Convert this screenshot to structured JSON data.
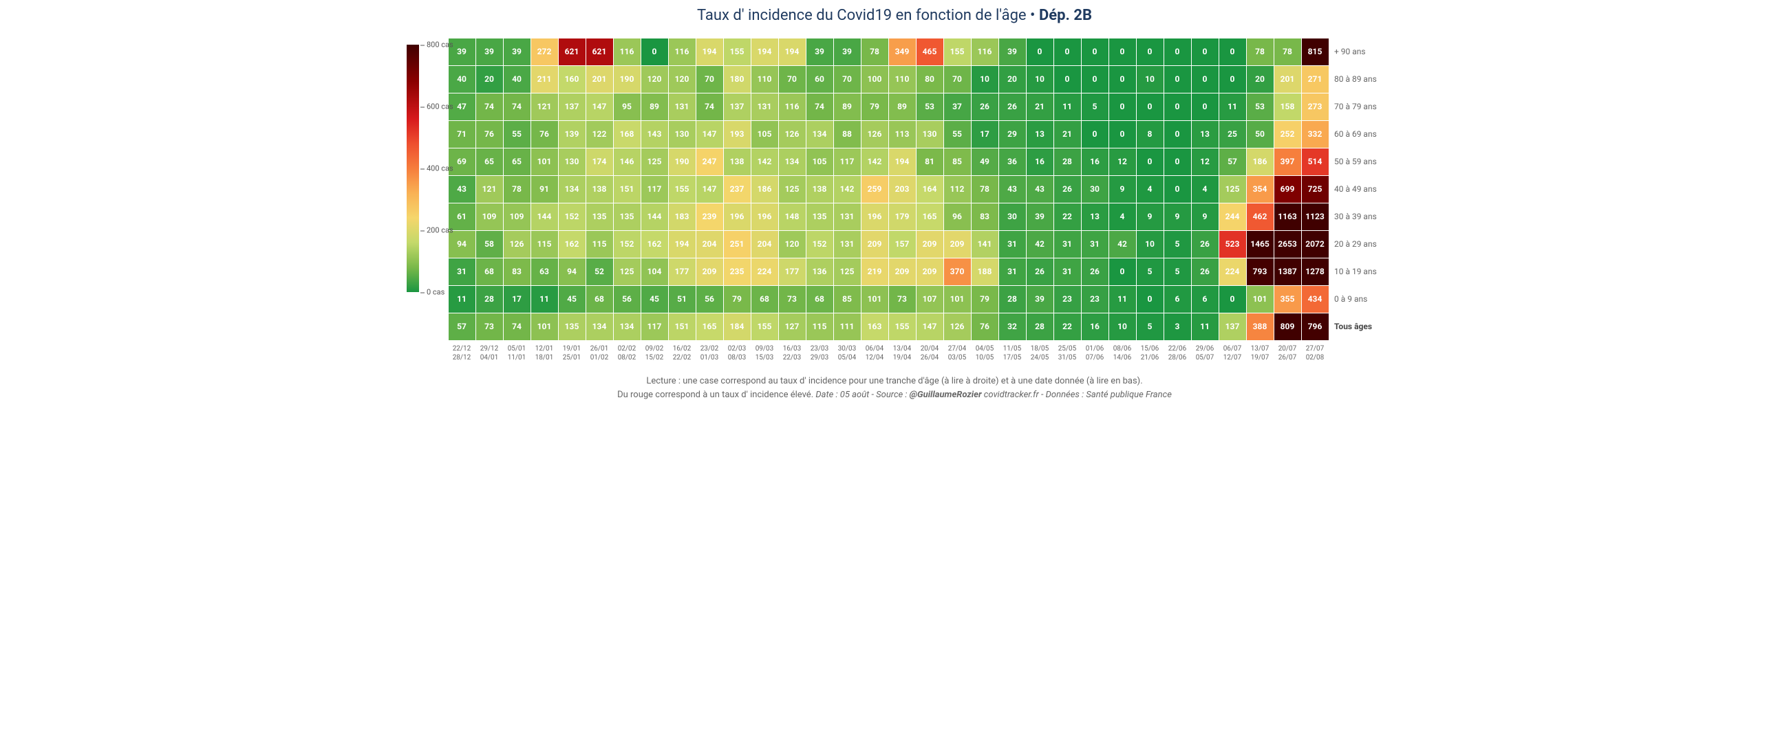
{
  "title_pre": "Taux d' incidence du Covid19 en fonction de l'âge • ",
  "title_dep": "Dép. 2B",
  "colorbar": {
    "ticks": [
      {
        "v": 800,
        "label": "800 cas"
      },
      {
        "v": 600,
        "label": "600 cas"
      },
      {
        "v": 400,
        "label": "400 cas"
      },
      {
        "v": 200,
        "label": "200 cas"
      },
      {
        "v": 0,
        "label": "0 cas"
      }
    ],
    "max": 800,
    "stops": [
      {
        "p": 0,
        "c": "#1a9641"
      },
      {
        "p": 10,
        "c": "#7ab94a"
      },
      {
        "p": 20,
        "c": "#c4d96a"
      },
      {
        "p": 30,
        "c": "#f5d66b"
      },
      {
        "p": 40,
        "c": "#f9b154"
      },
      {
        "p": 50,
        "c": "#f67d3c"
      },
      {
        "p": 60,
        "c": "#ee4f2f"
      },
      {
        "p": 70,
        "c": "#d7191c"
      },
      {
        "p": 85,
        "c": "#8b0000"
      },
      {
        "p": 100,
        "c": "#400000"
      }
    ]
  },
  "x_labels": [
    "22/12\n28/12",
    "29/12\n04/01",
    "05/01\n11/01",
    "12/01\n18/01",
    "19/01\n25/01",
    "26/01\n01/02",
    "02/02\n08/02",
    "09/02\n15/02",
    "16/02\n22/02",
    "23/02\n01/03",
    "02/03\n08/03",
    "09/03\n15/03",
    "16/03\n22/03",
    "23/03\n29/03",
    "30/03\n05/04",
    "06/04\n12/04",
    "13/04\n19/04",
    "20/04\n26/04",
    "27/04\n03/05",
    "04/05\n10/05",
    "11/05\n17/05",
    "18/05\n24/05",
    "25/05\n31/05",
    "01/06\n07/06",
    "08/06\n14/06",
    "15/06\n21/06",
    "22/06\n28/06",
    "29/06\n05/07",
    "06/07\n12/07",
    "13/07\n19/07",
    "20/07\n26/07",
    "27/07\n02/08"
  ],
  "rows": [
    {
      "label": "+ 90 ans",
      "bold": false,
      "vals": [
        39,
        39,
        39,
        272,
        621,
        621,
        116,
        0,
        116,
        194,
        155,
        194,
        194,
        39,
        39,
        78,
        349,
        465,
        155,
        116,
        39,
        0,
        0,
        0,
        0,
        0,
        0,
        0,
        0,
        78,
        78,
        815
      ]
    },
    {
      "label": "80 à 89 ans",
      "bold": false,
      "vals": [
        40,
        20,
        40,
        211,
        160,
        201,
        190,
        120,
        120,
        70,
        180,
        110,
        70,
        60,
        70,
        100,
        110,
        80,
        70,
        10,
        20,
        10,
        0,
        0,
        0,
        10,
        0,
        0,
        0,
        20,
        201,
        271
      ]
    },
    {
      "label": "70 à 79 ans",
      "bold": false,
      "vals": [
        47,
        74,
        74,
        121,
        137,
        147,
        95,
        89,
        131,
        74,
        137,
        131,
        116,
        74,
        89,
        79,
        89,
        53,
        37,
        26,
        26,
        21,
        11,
        5,
        0,
        0,
        0,
        0,
        11,
        53,
        158,
        273
      ]
    },
    {
      "label": "60 à 69 ans",
      "bold": false,
      "vals": [
        71,
        76,
        55,
        76,
        139,
        122,
        168,
        143,
        130,
        147,
        193,
        105,
        126,
        134,
        88,
        126,
        113,
        130,
        55,
        17,
        29,
        13,
        21,
        0,
        0,
        8,
        0,
        13,
        25,
        50,
        252,
        332
      ]
    },
    {
      "label": "50 à 59 ans",
      "bold": false,
      "vals": [
        69,
        65,
        65,
        101,
        130,
        174,
        146,
        125,
        190,
        247,
        138,
        142,
        134,
        105,
        117,
        142,
        194,
        81,
        85,
        49,
        36,
        16,
        28,
        16,
        12,
        0,
        0,
        12,
        57,
        186,
        397,
        514
      ]
    },
    {
      "label": "40 à 49 ans",
      "bold": false,
      "vals": [
        43,
        121,
        78,
        91,
        134,
        138,
        151,
        117,
        155,
        147,
        237,
        186,
        125,
        138,
        142,
        259,
        203,
        164,
        112,
        78,
        43,
        43,
        26,
        30,
        9,
        4,
        0,
        4,
        125,
        354,
        699,
        725
      ]
    },
    {
      "label": "30 à 39 ans",
      "bold": false,
      "vals": [
        61,
        109,
        109,
        144,
        152,
        135,
        135,
        144,
        183,
        239,
        196,
        196,
        148,
        135,
        131,
        196,
        179,
        165,
        96,
        83,
        30,
        39,
        22,
        13,
        4,
        9,
        9,
        9,
        244,
        462,
        1163,
        1123
      ]
    },
    {
      "label": "20 à 29 ans",
      "bold": false,
      "vals": [
        94,
        58,
        126,
        115,
        162,
        115,
        152,
        162,
        194,
        204,
        251,
        204,
        120,
        152,
        131,
        209,
        157,
        209,
        209,
        141,
        31,
        42,
        31,
        31,
        42,
        10,
        5,
        26,
        523,
        1465,
        2653,
        2072
      ]
    },
    {
      "label": "10 à 19 ans",
      "bold": false,
      "vals": [
        31,
        68,
        83,
        63,
        94,
        52,
        125,
        104,
        177,
        209,
        235,
        224,
        177,
        136,
        125,
        219,
        209,
        209,
        370,
        188,
        31,
        26,
        31,
        26,
        0,
        5,
        5,
        26,
        224,
        793,
        1387,
        1278
      ]
    },
    {
      "label": "0 à 9 ans",
      "bold": false,
      "vals": [
        11,
        28,
        17,
        11,
        45,
        68,
        56,
        45,
        51,
        56,
        79,
        68,
        73,
        68,
        85,
        101,
        73,
        107,
        101,
        79,
        28,
        39,
        23,
        23,
        11,
        0,
        6,
        6,
        0,
        101,
        355,
        434
      ]
    },
    {
      "label": "Tous âges",
      "bold": true,
      "vals": [
        57,
        73,
        74,
        101,
        135,
        134,
        134,
        117,
        151,
        165,
        184,
        155,
        127,
        115,
        111,
        163,
        155,
        147,
        126,
        76,
        32,
        28,
        22,
        16,
        10,
        5,
        3,
        11,
        137,
        388,
        809,
        796
      ]
    }
  ],
  "caption": {
    "line1": "Lecture : une case correspond au taux d' incidence pour une tranche d'âge (à lire à droite) et à une date donnée (à lire en bas).",
    "line2_a": "Du rouge correspond à un taux d' incidence élevé.  ",
    "line2_b": "Date : 05 août - Source : ",
    "line2_handle": "@GuillaumeRozier",
    "line2_c": " covidtracker.fr - Données : Santé publique France"
  },
  "scale": {
    "max_for_color": 800
  }
}
